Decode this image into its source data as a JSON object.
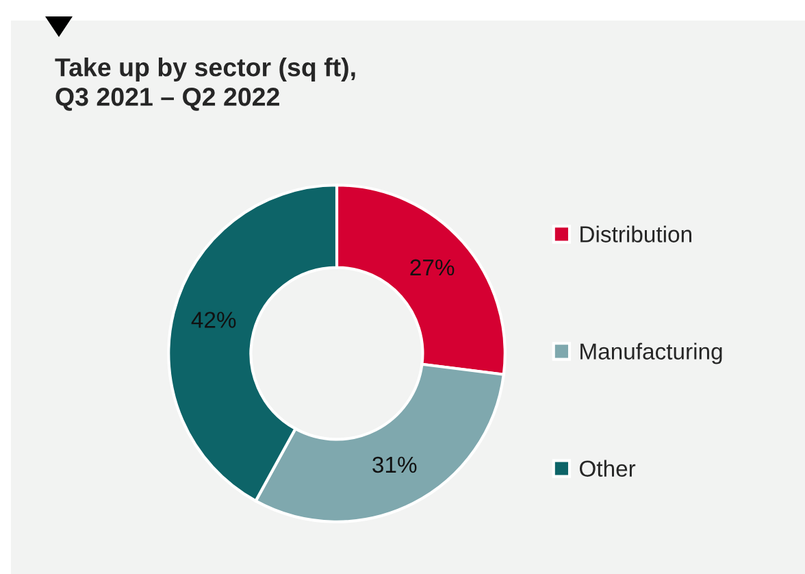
{
  "chart_data": {
    "type": "donut",
    "title": "Take up by sector (sq ft),\nQ3 2021 – Q2 2022",
    "categories": [
      "Distribution",
      "Manufacturing",
      "Other"
    ],
    "values": [
      27,
      31,
      42
    ],
    "colors": [
      "#d50032",
      "#7fa8ae",
      "#0d6468"
    ],
    "value_labels": [
      "27%",
      "31%",
      "42%"
    ],
    "legend": "right"
  }
}
